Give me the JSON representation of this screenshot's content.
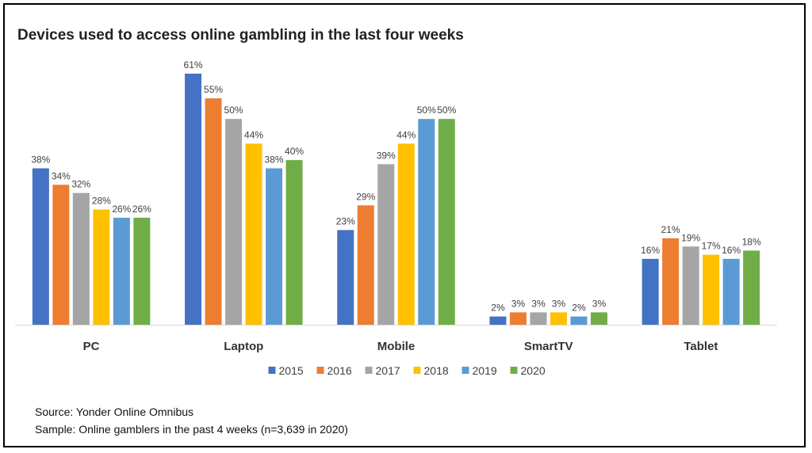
{
  "chart_data": {
    "type": "bar",
    "title": "Devices used to access online gambling in the last four weeks",
    "categories": [
      "PC",
      "Laptop",
      "Mobile",
      "SmartTV",
      "Tablet"
    ],
    "series": [
      {
        "name": "2015",
        "color": "#4472c4",
        "values": [
          38,
          61,
          23,
          2,
          16
        ]
      },
      {
        "name": "2016",
        "color": "#ed7d31",
        "values": [
          34,
          55,
          29,
          3,
          21
        ]
      },
      {
        "name": "2017",
        "color": "#a5a5a5",
        "values": [
          32,
          50,
          39,
          3,
          19
        ]
      },
      {
        "name": "2018",
        "color": "#ffc000",
        "values": [
          28,
          44,
          44,
          3,
          17
        ]
      },
      {
        "name": "2019",
        "color": "#5b9bd5",
        "values": [
          26,
          38,
          50,
          2,
          16
        ]
      },
      {
        "name": "2020",
        "color": "#70ad47",
        "values": [
          26,
          40,
          50,
          3,
          18
        ]
      }
    ],
    "value_suffix": "%",
    "ylim": [
      0,
      61
    ],
    "grid": false,
    "legend_position": "bottom"
  },
  "notes": {
    "source": "Source: Yonder Online Omnibus",
    "sample": "Sample: Online gamblers in the past 4 weeks (n=3,639 in 2020)"
  }
}
